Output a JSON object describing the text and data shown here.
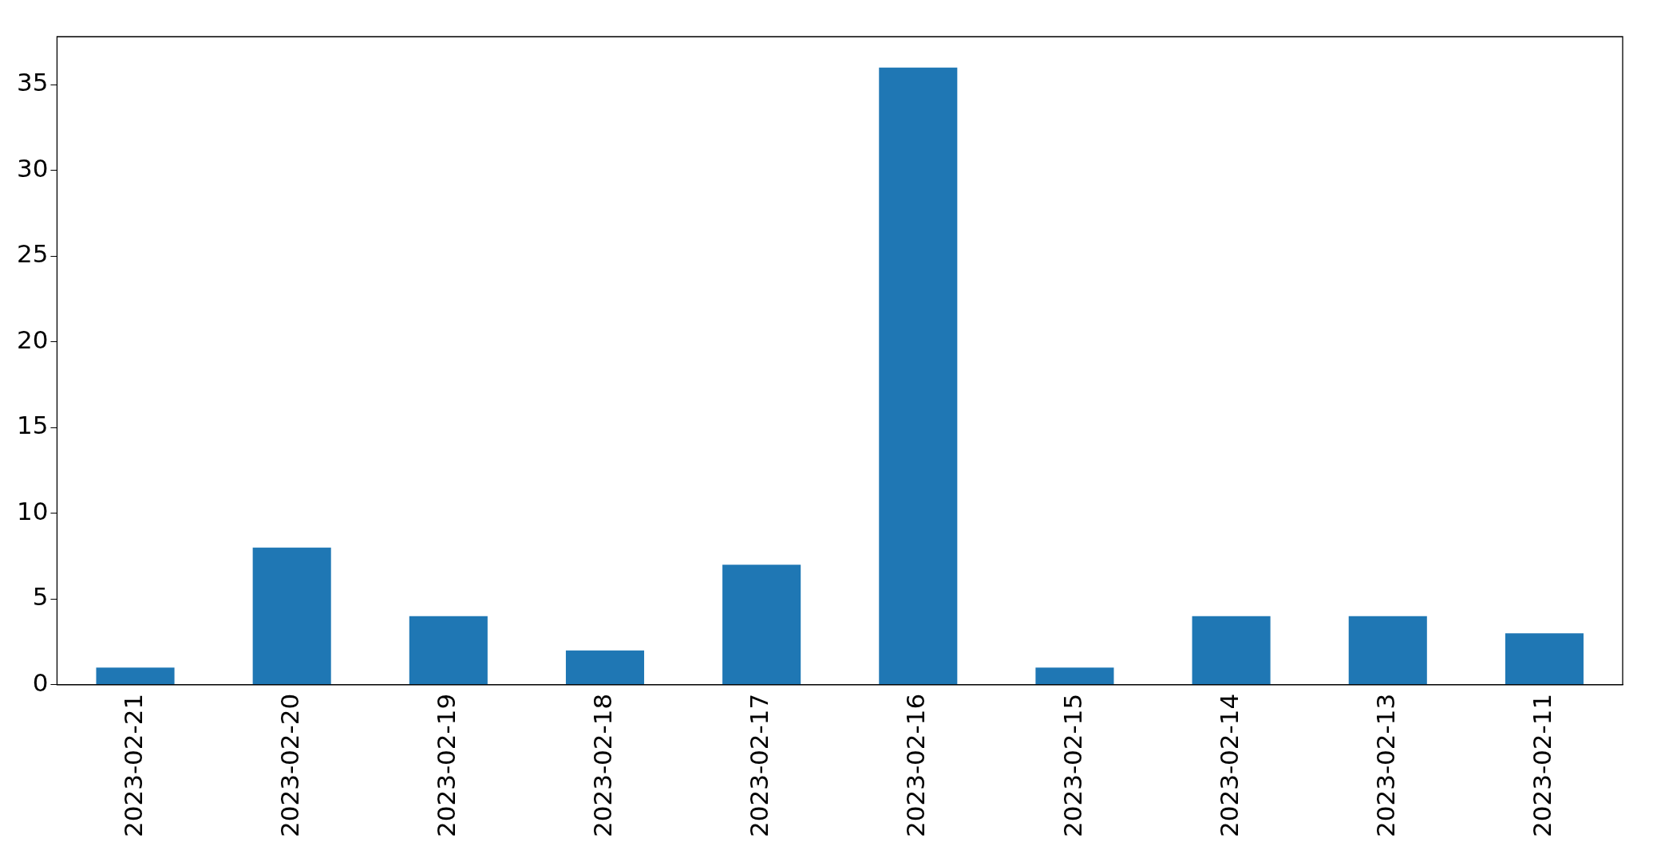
{
  "chart_data": {
    "type": "bar",
    "categories": [
      "2023-02-21",
      "2023-02-20",
      "2023-02-19",
      "2023-02-18",
      "2023-02-17",
      "2023-02-16",
      "2023-02-15",
      "2023-02-14",
      "2023-02-13",
      "2023-02-11"
    ],
    "values": [
      1,
      8,
      4,
      2,
      7,
      36,
      1,
      4,
      4,
      3
    ],
    "color": "#1f77b4",
    "ylim": [
      0,
      37.8
    ],
    "yticks": [
      0,
      5,
      10,
      15,
      20,
      25,
      30,
      35
    ],
    "grid": false
  }
}
